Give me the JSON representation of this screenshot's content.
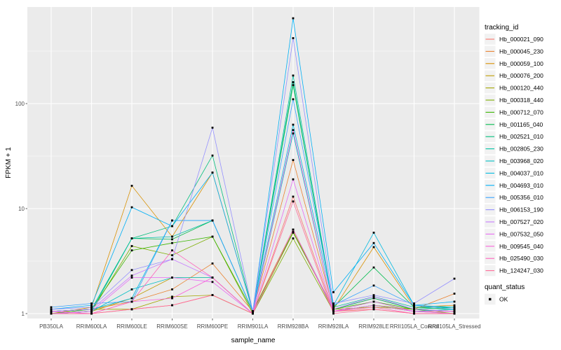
{
  "legend": {
    "tracking_title": "tracking_id",
    "quant_title": "quant_status",
    "quant_items": [
      {
        "label": "OK",
        "marker": "black-square"
      }
    ]
  },
  "colors": {
    "panel_bg": "#EBEBEB",
    "grid": "#FFFFFF",
    "legend_key_bg": "#F2F2F2",
    "tick_text": "#4D4D4D",
    "tick_mark": "#333333",
    "point": "#000000",
    "background": "#FFFFFF"
  },
  "chart_data": {
    "type": "line",
    "title": "",
    "xlabel": "sample_name",
    "ylabel": "FPKM + 1",
    "y_scale": "log10",
    "legend_position": "right",
    "grid": "on",
    "y_ticks": [
      1,
      10,
      100
    ],
    "y_tick_labels": [
      "1",
      "10",
      "100"
    ],
    "y_minor_ticks": [
      3.1623,
      31.623,
      316.23
    ],
    "ylim": [
      0.9,
      830
    ],
    "point_shape": "small-black-square",
    "categories": [
      "PB350LA",
      "RRIM600LA",
      "RRIM600LE",
      "RRIM600SE",
      "RRIM600PE",
      "RRIM901LA",
      "RRIM928BA",
      "RRIM928LA",
      "RRIM928LE",
      "RRII105LA_Control",
      "RRII105LA_Stressed"
    ],
    "series": [
      {
        "name": "Hb_000021_090",
        "color": "#F8766D",
        "values": [
          1.0,
          1.0,
          1.1,
          1.2,
          1.5,
          1.0,
          13,
          1.05,
          1.1,
          1.0,
          1.0
        ]
      },
      {
        "name": "Hb_000045_230",
        "color": "#EA8331",
        "values": [
          1.05,
          1.1,
          1.3,
          1.7,
          3.0,
          1.05,
          29,
          1.1,
          1.4,
          1.1,
          1.55
        ]
      },
      {
        "name": "Hb_000059_100",
        "color": "#D89000",
        "values": [
          1.0,
          1.15,
          16.5,
          5.4,
          22,
          1.05,
          6.3,
          1.1,
          4.3,
          1.15,
          1.2
        ]
      },
      {
        "name": "Hb_000076_200",
        "color": "#C09B00",
        "values": [
          1.0,
          1.05,
          1.4,
          2.2,
          2.2,
          1.0,
          6.3,
          1.05,
          1.2,
          1.05,
          1.0
        ]
      },
      {
        "name": "Hb_000120_440",
        "color": "#A3A500",
        "values": [
          1.05,
          1.1,
          1.1,
          1.45,
          1.5,
          1.0,
          5.9,
          1.1,
          1.15,
          1.1,
          1.05
        ]
      },
      {
        "name": "Hb_000318_440",
        "color": "#7CAE00",
        "values": [
          1.0,
          1.05,
          4.4,
          3.6,
          5.4,
          1.0,
          5.2,
          1.05,
          1.2,
          1.1,
          1.0
        ]
      },
      {
        "name": "Hb_000712_070",
        "color": "#39B600",
        "values": [
          1.0,
          1.1,
          4.0,
          4.7,
          5.4,
          1.05,
          6.0,
          1.1,
          1.3,
          1.1,
          1.05
        ]
      },
      {
        "name": "Hb_001165_040",
        "color": "#00BB4E",
        "values": [
          1.05,
          1.1,
          5.2,
          5.1,
          7.7,
          1.05,
          150,
          1.15,
          2.75,
          1.15,
          1.1
        ]
      },
      {
        "name": "Hb_002521_010",
        "color": "#00BF7D",
        "values": [
          1.0,
          1.05,
          5.2,
          6.8,
          32,
          1.05,
          160,
          1.1,
          1.4,
          1.1,
          1.15
        ]
      },
      {
        "name": "Hb_002805_230",
        "color": "#00C1A3",
        "values": [
          1.05,
          1.1,
          5.2,
          5.4,
          7.7,
          1.05,
          185,
          1.15,
          1.45,
          1.15,
          1.15
        ]
      },
      {
        "name": "Hb_003968_020",
        "color": "#00BFC4",
        "values": [
          1.0,
          1.05,
          1.7,
          2.2,
          2.2,
          1.0,
          52,
          1.05,
          1.2,
          1.05,
          1.1
        ]
      },
      {
        "name": "Hb_004037_010",
        "color": "#00BAE0",
        "values": [
          1.05,
          1.1,
          1.4,
          7.7,
          7.7,
          1.05,
          63,
          1.2,
          5.9,
          1.2,
          1.15
        ]
      },
      {
        "name": "Hb_004693_010",
        "color": "#00B0F6",
        "values": [
          1.1,
          1.2,
          10.3,
          6.8,
          22,
          1.05,
          650,
          1.6,
          4.7,
          1.2,
          1.3
        ]
      },
      {
        "name": "Hb_005356_010",
        "color": "#35A2FF",
        "values": [
          1.15,
          1.25,
          1.3,
          7.7,
          7.7,
          1.05,
          110,
          1.2,
          1.85,
          1.2,
          1.1
        ]
      },
      {
        "name": "Hb_006153_190",
        "color": "#9590FF",
        "values": [
          1.1,
          1.15,
          2.6,
          3.3,
          59,
          1.05,
          420,
          1.25,
          1.5,
          1.25,
          2.15
        ]
      },
      {
        "name": "Hb_007527_020",
        "color": "#C77CFF",
        "values": [
          1.05,
          1.1,
          2.3,
          3.3,
          2.2,
          1.0,
          6.3,
          1.1,
          1.45,
          1.1,
          1.05
        ]
      },
      {
        "name": "Hb_007532_050",
        "color": "#E76BF3",
        "values": [
          1.0,
          1.05,
          2.2,
          2.2,
          2.0,
          1.0,
          19,
          1.05,
          1.3,
          1.05,
          1.0
        ]
      },
      {
        "name": "Hb_009545_040",
        "color": "#FA62DB",
        "values": [
          1.05,
          1.0,
          1.3,
          1.4,
          2.2,
          1.0,
          56,
          1.05,
          1.2,
          1.05,
          1.05
        ]
      },
      {
        "name": "Hb_025490_030",
        "color": "#FF62BC",
        "values": [
          1.0,
          1.0,
          1.3,
          4.0,
          2.2,
          1.0,
          6.3,
          1.05,
          1.15,
          1.0,
          1.0
        ]
      },
      {
        "name": "Hb_124247_030",
        "color": "#FF6A98",
        "values": [
          1.0,
          1.0,
          1.1,
          1.2,
          1.5,
          1.0,
          11.7,
          1.0,
          1.1,
          1.0,
          1.0
        ]
      }
    ]
  }
}
